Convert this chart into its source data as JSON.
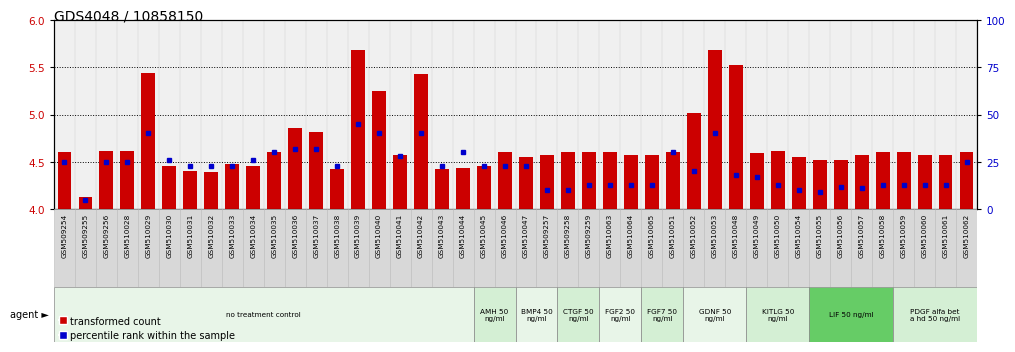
{
  "title": "GDS4048 / 10858150",
  "samples": [
    "GSM509254",
    "GSM509255",
    "GSM509256",
    "GSM510028",
    "GSM510029",
    "GSM510030",
    "GSM510031",
    "GSM510032",
    "GSM510033",
    "GSM510034",
    "GSM510035",
    "GSM510036",
    "GSM510037",
    "GSM510038",
    "GSM510039",
    "GSM510040",
    "GSM510041",
    "GSM510042",
    "GSM510043",
    "GSM510044",
    "GSM510045",
    "GSM510046",
    "GSM510047",
    "GSM509257",
    "GSM509258",
    "GSM509259",
    "GSM510063",
    "GSM510064",
    "GSM510065",
    "GSM510051",
    "GSM510052",
    "GSM510053",
    "GSM510048",
    "GSM510049",
    "GSM510050",
    "GSM510054",
    "GSM510055",
    "GSM510056",
    "GSM510057",
    "GSM510058",
    "GSM510059",
    "GSM510060",
    "GSM510061",
    "GSM510062"
  ],
  "red_values": [
    4.6,
    4.13,
    4.62,
    4.62,
    5.44,
    4.46,
    4.4,
    4.39,
    4.48,
    4.46,
    4.6,
    4.86,
    4.82,
    4.43,
    5.68,
    5.25,
    4.57,
    5.43,
    4.42,
    4.44,
    4.46,
    4.6,
    4.55,
    4.57,
    4.6,
    4.6,
    4.6,
    4.57,
    4.57,
    4.6,
    5.02,
    5.68,
    5.52,
    4.59,
    4.62,
    4.55,
    4.52,
    4.52,
    4.57,
    4.6,
    4.6,
    4.57,
    4.57,
    4.6
  ],
  "blue_values": [
    25,
    5,
    25,
    25,
    40,
    26,
    23,
    23,
    23,
    26,
    30,
    32,
    32,
    23,
    45,
    40,
    28,
    40,
    23,
    30,
    23,
    23,
    23,
    10,
    10,
    13,
    13,
    13,
    13,
    30,
    20,
    40,
    18,
    17,
    13,
    10,
    9,
    12,
    11,
    13,
    13,
    13,
    13,
    25
  ],
  "groups": [
    {
      "label": "no treatment control",
      "start": 0,
      "end": 20,
      "color": "#e8f5e8",
      "border": true
    },
    {
      "label": "AMH 50\nng/ml",
      "start": 20,
      "end": 22,
      "color": "#d4efd4",
      "border": true
    },
    {
      "label": "BMP4 50\nng/ml",
      "start": 22,
      "end": 24,
      "color": "#e8f5e8",
      "border": true
    },
    {
      "label": "CTGF 50\nng/ml",
      "start": 24,
      "end": 26,
      "color": "#d4efd4",
      "border": true
    },
    {
      "label": "FGF2 50\nng/ml",
      "start": 26,
      "end": 28,
      "color": "#e8f5e8",
      "border": true
    },
    {
      "label": "FGF7 50\nng/ml",
      "start": 28,
      "end": 30,
      "color": "#d4efd4",
      "border": true
    },
    {
      "label": "GDNF 50\nng/ml",
      "start": 30,
      "end": 33,
      "color": "#e8f5e8",
      "border": true
    },
    {
      "label": "KITLG 50\nng/ml",
      "start": 33,
      "end": 36,
      "color": "#d4efd4",
      "border": true
    },
    {
      "label": "LIF 50 ng/ml",
      "start": 36,
      "end": 40,
      "color": "#66cc66",
      "border": true
    },
    {
      "label": "PDGF alfa bet\na hd 50 ng/ml",
      "start": 40,
      "end": 44,
      "color": "#d4efd4",
      "border": true
    }
  ],
  "ylim_left": [
    4.0,
    6.0
  ],
  "ylim_right": [
    0,
    100
  ],
  "yticks_left": [
    4.0,
    4.5,
    5.0,
    5.5,
    6.0
  ],
  "yticks_right": [
    0,
    25,
    50,
    75,
    100
  ],
  "bar_color": "#cc0000",
  "dot_color": "#0000cc",
  "bar_width": 0.65,
  "background_color": "#ffffff",
  "title_fontsize": 10,
  "tick_fontsize": 5.2,
  "agent_label": "agent"
}
